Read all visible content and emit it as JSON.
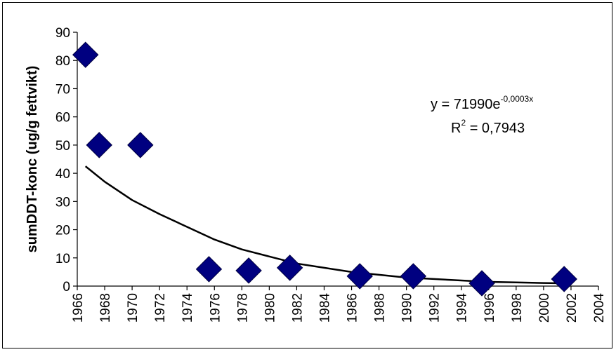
{
  "chart_data": {
    "type": "scatter",
    "ylabel": "sumDDT-konc (ug/g fettvikt)",
    "xlim": [
      1966,
      2004
    ],
    "ylim": [
      0,
      90
    ],
    "x_ticks": [
      "1966",
      "1968",
      "1970",
      "1972",
      "1974",
      "1976",
      "1978",
      "1980",
      "1982",
      "1984",
      "1986",
      "1988",
      "1990",
      "1992",
      "1994",
      "1996",
      "1998",
      "2000",
      "2002",
      "2004"
    ],
    "y_ticks": [
      "0",
      "10",
      "20",
      "30",
      "40",
      "50",
      "60",
      "70",
      "80",
      "90"
    ],
    "grid": false,
    "marker_color": "#000080",
    "trend_color": "#000000",
    "points": [
      {
        "x": 1966.6,
        "y": 82
      },
      {
        "x": 1967.6,
        "y": 50
      },
      {
        "x": 1970.6,
        "y": 50
      },
      {
        "x": 1975.6,
        "y": 6
      },
      {
        "x": 1978.5,
        "y": 5.5
      },
      {
        "x": 1981.5,
        "y": 6.5
      },
      {
        "x": 1986.6,
        "y": 3.5
      },
      {
        "x": 1990.5,
        "y": 3.5
      },
      {
        "x": 1995.5,
        "y": 1
      },
      {
        "x": 2001.5,
        "y": 2.5
      }
    ],
    "trendline": {
      "type": "exponential",
      "points": [
        {
          "x": 1966.6,
          "y": 42.5
        },
        {
          "x": 1968,
          "y": 37
        },
        {
          "x": 1970,
          "y": 30.5
        },
        {
          "x": 1972,
          "y": 25.5
        },
        {
          "x": 1974,
          "y": 21
        },
        {
          "x": 1976,
          "y": 16.5
        },
        {
          "x": 1978,
          "y": 13
        },
        {
          "x": 1980,
          "y": 10.5
        },
        {
          "x": 1982,
          "y": 8
        },
        {
          "x": 1984,
          "y": 6.5
        },
        {
          "x": 1986,
          "y": 5
        },
        {
          "x": 1988,
          "y": 4
        },
        {
          "x": 1990,
          "y": 3
        },
        {
          "x": 1992,
          "y": 2.5
        },
        {
          "x": 1994,
          "y": 2
        },
        {
          "x": 1996,
          "y": 1.5
        },
        {
          "x": 1998,
          "y": 1.3
        },
        {
          "x": 2000,
          "y": 1.1
        },
        {
          "x": 2001.5,
          "y": 1.0
        }
      ]
    },
    "equation": {
      "base": "y = 71990e",
      "exponent": "-0,0003x"
    },
    "r_squared": {
      "base": "R",
      "exponent": "2",
      "rest": " = 0,7943"
    }
  }
}
